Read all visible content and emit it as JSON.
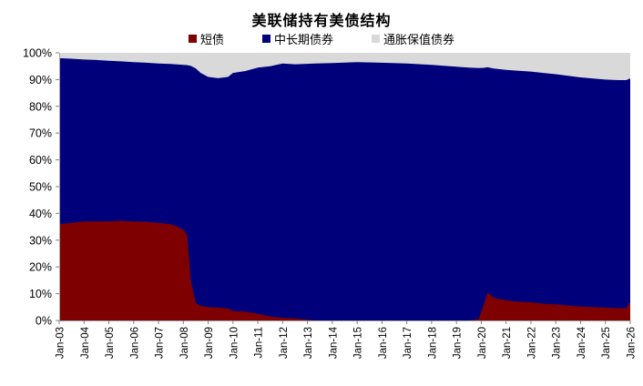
{
  "chart_data": {
    "type": "area",
    "stacked": true,
    "title": "美联储持有美债结构",
    "unit": "%",
    "ylim": [
      0,
      100
    ],
    "xlim": [
      2003,
      2026
    ],
    "grid": false,
    "legend_position": "top",
    "ytick_labels": [
      "0%",
      "10%",
      "20%",
      "30%",
      "40%",
      "50%",
      "60%",
      "70%",
      "80%",
      "90%",
      "100%"
    ],
    "xtick_labels": [
      "Jan-03",
      "Jan-04",
      "Jan-05",
      "Jan-06",
      "Jan-07",
      "Jan-08",
      "Jan-09",
      "Jan-10",
      "Jan-11",
      "Jan-12",
      "Jan-13",
      "Jan-14",
      "Jan-15",
      "Jan-16",
      "Jan-17",
      "Jan-18",
      "Jan-19",
      "Jan-20",
      "Jan-21",
      "Jan-22",
      "Jan-23",
      "Jan-24",
      "Jan-25",
      "Jan-26"
    ],
    "x": [
      2003,
      2003.5,
      2004,
      2004.5,
      2005,
      2005.5,
      2006,
      2006.5,
      2007,
      2007.5,
      2008,
      2008.15,
      2008.3,
      2008.5,
      2008.7,
      2009,
      2009.4,
      2009.8,
      2010,
      2010.5,
      2011,
      2011.5,
      2012,
      2012.5,
      2013,
      2013.3,
      2014,
      2015,
      2016,
      2017,
      2018,
      2019,
      2019.5,
      2019.9,
      2020.1,
      2020.25,
      2020.5,
      2021,
      2021.5,
      2022,
      2022.5,
      2023,
      2023.5,
      2024,
      2024.5,
      2025,
      2025.5,
      2025.85,
      2025.95,
      2026
    ],
    "series": [
      {
        "key": "short-bonds",
        "name": "短债",
        "color": "#7f0000",
        "values": [
          36,
          36.5,
          37,
          37,
          37,
          37.2,
          37,
          36.8,
          36.5,
          36,
          34,
          32,
          15,
          6.5,
          5.5,
          5,
          4.8,
          4.5,
          3.5,
          3.3,
          2.5,
          1.5,
          1,
          0.8,
          0.3,
          0,
          0,
          0,
          0,
          0,
          0,
          0,
          0,
          0.5,
          6,
          10.5,
          8.5,
          7.5,
          7,
          6.8,
          6.3,
          6,
          5.6,
          5.2,
          5,
          4.8,
          4.6,
          4.6,
          6.5,
          6.5
        ]
      },
      {
        "key": "mid-long-bonds",
        "name": "中长期债券",
        "color": "#00007b",
        "values": [
          62,
          61.3,
          60.5,
          60.3,
          60,
          59.6,
          59.5,
          59.5,
          59.5,
          59.8,
          61.5,
          63.4,
          80.1,
          87.7,
          87,
          86,
          85.7,
          86.5,
          89,
          89.9,
          92,
          93.5,
          95,
          94.9,
          95.6,
          96,
          96.2,
          96.5,
          96.3,
          96,
          95.5,
          94.8,
          94.5,
          93.8,
          88.4,
          84.1,
          85.6,
          86.1,
          86.3,
          86.2,
          86.2,
          86,
          85.8,
          85.6,
          85.4,
          85.2,
          85.2,
          85.2,
          83.8,
          83.8
        ]
      },
      {
        "key": "tips",
        "name": "通胀保值债券",
        "color": "#d9d9d9",
        "values": [
          2,
          2.2,
          2.5,
          2.7,
          3,
          3.2,
          3.5,
          3.7,
          4,
          4.2,
          4.5,
          4.6,
          4.9,
          5.8,
          7.5,
          9,
          9.5,
          9,
          7.5,
          6.8,
          5.5,
          5,
          4,
          4.3,
          4.1,
          4,
          3.8,
          3.5,
          3.7,
          4,
          4.5,
          5.2,
          5.5,
          5.7,
          5.6,
          5.4,
          5.9,
          6.4,
          6.7,
          7,
          7.5,
          8,
          8.6,
          9.2,
          9.6,
          10,
          10.2,
          10.2,
          9.7,
          9.7
        ]
      }
    ],
    "axis_color": "#a6a6a6",
    "tick_color": "#808080"
  }
}
